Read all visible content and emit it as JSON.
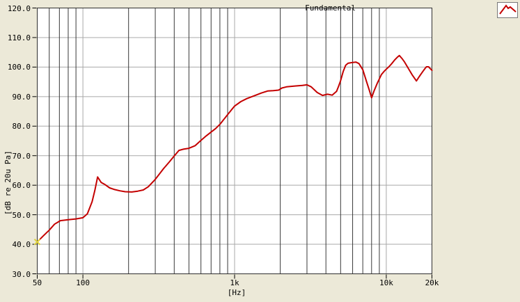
{
  "colors": {
    "background": "#ece9d8",
    "plot_background": "#ffffff",
    "grid_light": "#a8a8a8",
    "grid_dark": "#383838",
    "plot_border": "#2e2e2e",
    "curve": "#c40000",
    "start_marker": "#ddd03a",
    "text": "#000000"
  },
  "legend": {
    "label": "Fundamental"
  },
  "y_axis": {
    "title": "[dB re 20u Pa]",
    "ticks": [
      {
        "label": "120.0",
        "value": 120
      },
      {
        "label": "110.0",
        "value": 110
      },
      {
        "label": "100.0",
        "value": 100
      },
      {
        "label": "90.0",
        "value": 90
      },
      {
        "label": "80.0",
        "value": 80
      },
      {
        "label": "70.0",
        "value": 70
      },
      {
        "label": "60.0",
        "value": 60
      },
      {
        "label": "50.0",
        "value": 50
      },
      {
        "label": "40.0",
        "value": 40
      },
      {
        "label": "30.0",
        "value": 30
      }
    ]
  },
  "x_axis": {
    "title": "[Hz]",
    "ticks": [
      {
        "label": "50",
        "value": 50
      },
      {
        "label": "100",
        "value": 100
      },
      {
        "label": "1k",
        "value": 1000
      },
      {
        "label": "10k",
        "value": 10000
      },
      {
        "label": "20k",
        "value": 20000
      }
    ]
  },
  "chart_data": {
    "type": "line",
    "title": "",
    "xlabel": "[Hz]",
    "ylabel": "[dB re 20u Pa]",
    "x_scale": "log",
    "x_range": [
      50,
      20000
    ],
    "y_range": [
      30,
      120
    ],
    "y_gridlines": [
      40,
      50,
      60,
      70,
      80,
      90,
      100,
      110
    ],
    "x_gridlines_dark": [
      60,
      70,
      80,
      90,
      200,
      300,
      400,
      500,
      600,
      700,
      800,
      900,
      2000,
      3000,
      4000,
      5000,
      6000,
      7000,
      8000,
      9000
    ],
    "x_gridlines_light": [
      100,
      1000,
      10000
    ],
    "legend_position": "top-right",
    "series": [
      {
        "name": "Fundamental",
        "color": "#c40000",
        "start_marker": {
          "shape": "x-cross",
          "color": "#ddd03a"
        },
        "points": [
          [
            50,
            40.8
          ],
          [
            55,
            42.9
          ],
          [
            60,
            44.8
          ],
          [
            65,
            46.8
          ],
          [
            71,
            48.0
          ],
          [
            80,
            48.3
          ],
          [
            90,
            48.6
          ],
          [
            100,
            49.0
          ],
          [
            107,
            50.3
          ],
          [
            115,
            54.4
          ],
          [
            120,
            58.3
          ],
          [
            125,
            62.8
          ],
          [
            132,
            60.9
          ],
          [
            140,
            60.2
          ],
          [
            150,
            59.1
          ],
          [
            160,
            58.6
          ],
          [
            175,
            58.1
          ],
          [
            190,
            57.8
          ],
          [
            210,
            57.7
          ],
          [
            230,
            58.0
          ],
          [
            250,
            58.4
          ],
          [
            270,
            59.5
          ],
          [
            300,
            62.0
          ],
          [
            340,
            65.6
          ],
          [
            370,
            67.8
          ],
          [
            400,
            69.9
          ],
          [
            430,
            71.8
          ],
          [
            460,
            72.2
          ],
          [
            500,
            72.5
          ],
          [
            550,
            73.4
          ],
          [
            600,
            75.2
          ],
          [
            650,
            76.7
          ],
          [
            700,
            78.0
          ],
          [
            750,
            79.2
          ],
          [
            800,
            80.6
          ],
          [
            850,
            82.3
          ],
          [
            900,
            83.9
          ],
          [
            950,
            85.4
          ],
          [
            1000,
            86.8
          ],
          [
            1100,
            88.3
          ],
          [
            1200,
            89.3
          ],
          [
            1350,
            90.3
          ],
          [
            1500,
            91.2
          ],
          [
            1650,
            91.9
          ],
          [
            1800,
            92.0
          ],
          [
            1950,
            92.2
          ],
          [
            2050,
            92.9
          ],
          [
            2200,
            93.3
          ],
          [
            2500,
            93.6
          ],
          [
            2800,
            93.8
          ],
          [
            3000,
            94.0
          ],
          [
            3200,
            93.3
          ],
          [
            3500,
            91.4
          ],
          [
            3800,
            90.4
          ],
          [
            4100,
            90.8
          ],
          [
            4400,
            90.5
          ],
          [
            4700,
            91.8
          ],
          [
            4850,
            93.5
          ],
          [
            5000,
            95.4
          ],
          [
            5200,
            98.5
          ],
          [
            5400,
            100.6
          ],
          [
            5600,
            101.3
          ],
          [
            5900,
            101.5
          ],
          [
            6300,
            101.7
          ],
          [
            6600,
            101.2
          ],
          [
            7000,
            99.1
          ],
          [
            7400,
            95.2
          ],
          [
            7700,
            92.4
          ],
          [
            8000,
            89.6
          ],
          [
            8300,
            91.9
          ],
          [
            8700,
            94.4
          ],
          [
            9300,
            97.5
          ],
          [
            9700,
            98.6
          ],
          [
            10000,
            99.3
          ],
          [
            10400,
            100.1
          ],
          [
            10800,
            101.0
          ],
          [
            11400,
            102.5
          ],
          [
            11800,
            103.3
          ],
          [
            12200,
            103.9
          ],
          [
            12700,
            102.9
          ],
          [
            13200,
            101.7
          ],
          [
            14000,
            99.5
          ],
          [
            14800,
            97.4
          ],
          [
            15800,
            95.3
          ],
          [
            16500,
            96.8
          ],
          [
            17300,
            98.3
          ],
          [
            18000,
            99.5
          ],
          [
            18400,
            100.1
          ],
          [
            19000,
            100.1
          ],
          [
            20000,
            98.9
          ]
        ]
      }
    ]
  }
}
